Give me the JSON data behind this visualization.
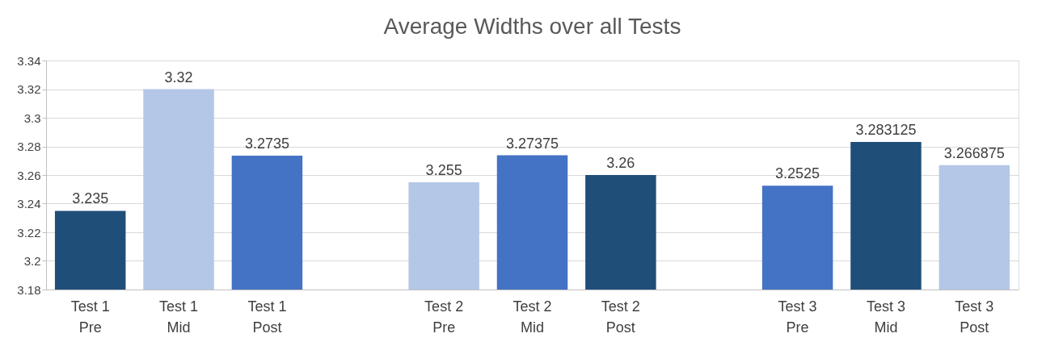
{
  "chart_data": {
    "type": "bar",
    "title": "Average Widths over all Tests",
    "categories": [
      "Test 1\nPre",
      "Test 1\nMid",
      "Test 1\nPost",
      null,
      "Test 2\nPre",
      "Test 2\nMid",
      "Test 2\nPost",
      null,
      "Test 3\nPre",
      "Test 3\nMid",
      "Test 3\nPost"
    ],
    "values": [
      3.235,
      3.32,
      3.2735,
      null,
      3.255,
      3.27375,
      3.26,
      null,
      3.2525,
      3.283125,
      3.266875
    ],
    "colors": [
      "#1f4e79",
      "#b4c7e7",
      "#4472c4",
      null,
      "#b4c7e7",
      "#4472c4",
      "#1f4e79",
      null,
      "#4472c4",
      "#1f4e79",
      "#b4c7e7"
    ],
    "ylim": [
      3.18,
      3.34
    ],
    "yticks": [
      3.18,
      3.2,
      3.22,
      3.24,
      3.26,
      3.28,
      3.3,
      3.32,
      3.34
    ],
    "grid": "y",
    "data_labels": true
  }
}
